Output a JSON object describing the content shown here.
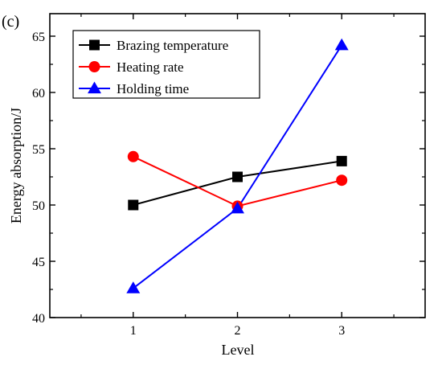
{
  "panel_label": "(c)",
  "chart_data": {
    "type": "line",
    "title": "",
    "xlabel": "Level",
    "ylabel": "Energy absorption/J",
    "x": [
      1,
      2,
      3
    ],
    "xlim": [
      0.2,
      3.8
    ],
    "ylim": [
      40,
      67
    ],
    "xticks": [
      "1",
      "2",
      "3"
    ],
    "yticks": [
      "40",
      "45",
      "50",
      "55",
      "60",
      "65"
    ],
    "grid": false,
    "legend_position": "top-left",
    "series": [
      {
        "name": "Brazing temperature",
        "values": [
          50.0,
          52.5,
          53.9
        ],
        "color": "#000000",
        "marker": "square"
      },
      {
        "name": "Heating rate",
        "values": [
          54.3,
          49.9,
          52.2
        ],
        "color": "#ff0000",
        "marker": "circle"
      },
      {
        "name": "Holding time",
        "values": [
          42.6,
          49.7,
          64.2
        ],
        "color": "#0000ff",
        "marker": "triangle"
      }
    ]
  }
}
